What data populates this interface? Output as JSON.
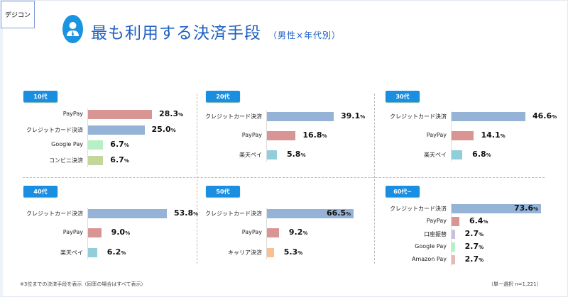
{
  "tag": "デジコン",
  "header": {
    "title": "最も利用する決済手段",
    "subtitle": "（男性×年代別）"
  },
  "footnote_left": "※3位までの決済手段を表示（同率の場合はすべて表示）",
  "footnote_right": "（単一選択 n=1,221）",
  "colors": {
    "クレジットカード決済": "#95b3d7",
    "PayPay": "#d99594",
    "Google Pay": "#b6f0c4",
    "コンビニ決済": "#c3d69b",
    "楽天ペイ": "#92cddc",
    "キャリア決済": "#fac08f",
    "口座振替": "#ccc0da",
    "Amazon Pay": "#e6b9b8"
  },
  "chart_data": [
    {
      "type": "bar",
      "title": "10代",
      "categories": [
        "PayPay",
        "クレジットカード決済",
        "Google Pay",
        "コンビニ決済"
      ],
      "values": [
        28.3,
        25.0,
        6.7,
        6.7
      ],
      "unit": "%"
    },
    {
      "type": "bar",
      "title": "20代",
      "categories": [
        "クレジットカード決済",
        "PayPay",
        "楽天ペイ"
      ],
      "values": [
        39.1,
        16.8,
        5.8
      ],
      "unit": "%"
    },
    {
      "type": "bar",
      "title": "30代",
      "categories": [
        "クレジットカード決済",
        "PayPay",
        "楽天ペイ"
      ],
      "values": [
        46.6,
        14.1,
        6.8
      ],
      "unit": "%"
    },
    {
      "type": "bar",
      "title": "40代",
      "categories": [
        "クレジットカード決済",
        "PayPay",
        "楽天ペイ"
      ],
      "values": [
        53.8,
        9.0,
        6.2
      ],
      "unit": "%"
    },
    {
      "type": "bar",
      "title": "50代",
      "categories": [
        "クレジットカード決済",
        "PayPay",
        "キャリア決済"
      ],
      "values": [
        66.5,
        9.2,
        5.3
      ],
      "unit": "%"
    },
    {
      "type": "bar",
      "title": "60代~",
      "categories": [
        "クレジットカード決済",
        "PayPay",
        "口座振替",
        "Google Pay",
        "Amazon Pay"
      ],
      "values": [
        73.6,
        6.4,
        2.7,
        2.7,
        2.7
      ],
      "unit": "%"
    }
  ]
}
